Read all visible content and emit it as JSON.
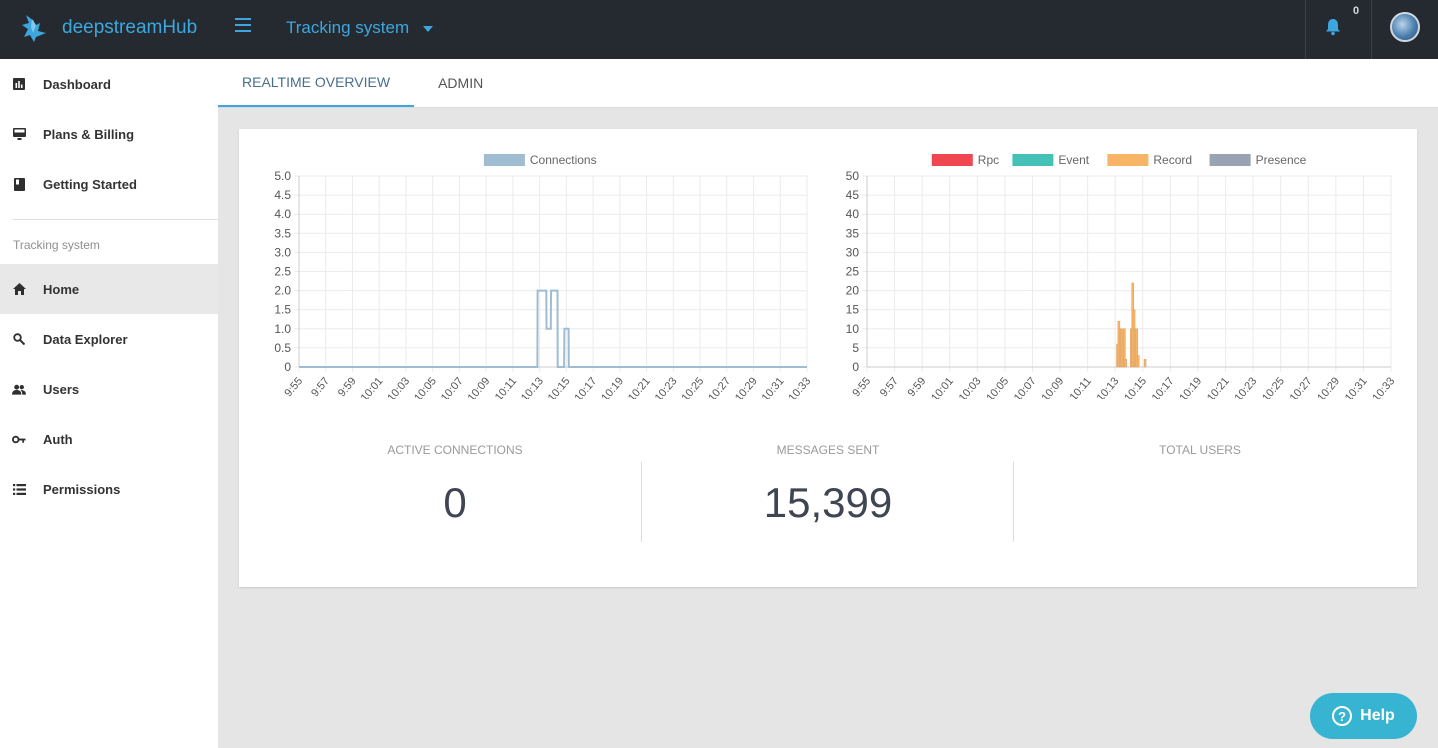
{
  "header": {
    "brand": "deepstreamHub",
    "app_name": "Tracking system",
    "notification_count": "0",
    "icons": [
      "deepstream-logo-icon",
      "menu-icon",
      "chevron-down-icon",
      "bell-icon",
      "avatar"
    ]
  },
  "sidebar": {
    "top_items": [
      {
        "label": "Dashboard",
        "icon": "bar-chart-icon"
      },
      {
        "label": "Plans & Billing",
        "icon": "monitor-icon"
      },
      {
        "label": "Getting Started",
        "icon": "book-icon"
      }
    ],
    "section_title": "Tracking system",
    "items": [
      {
        "label": "Home",
        "icon": "home-icon",
        "active": true
      },
      {
        "label": "Data Explorer",
        "icon": "search-icon"
      },
      {
        "label": "Users",
        "icon": "users-icon"
      },
      {
        "label": "Auth",
        "icon": "key-icon"
      },
      {
        "label": "Permissions",
        "icon": "list-icon"
      }
    ]
  },
  "tabs": [
    {
      "label": "REALTIME OVERVIEW",
      "active": true
    },
    {
      "label": "ADMIN",
      "active": false
    }
  ],
  "stats": [
    {
      "label": "ACTIVE CONNECTIONS",
      "value": "0"
    },
    {
      "label": "MESSAGES SENT",
      "value": "15,399"
    },
    {
      "label": "TOTAL USERS",
      "value": ""
    }
  ],
  "help": {
    "label": "Help"
  },
  "colors": {
    "accent": "#3ca7df",
    "topbar": "#252a31",
    "connections": "#9fbcd1",
    "rpc": "#f04650",
    "event": "#45c1b8",
    "record": "#f8b565",
    "presence": "#9aa3b4"
  },
  "chart_data": [
    {
      "type": "area",
      "title": "",
      "legend": [
        "Connections"
      ],
      "legend_position": "top",
      "grid": true,
      "ylim": [
        0,
        5
      ],
      "yticks": [
        "0",
        "0.5",
        "1.0",
        "1.5",
        "2.0",
        "2.5",
        "3.0",
        "3.5",
        "4.0",
        "4.5",
        "5.0"
      ],
      "xticks": [
        "9:55",
        "9:57",
        "9:59",
        "10:01",
        "10:03",
        "10:05",
        "10:07",
        "10:09",
        "10:11",
        "10:13",
        "10:15",
        "10:17",
        "10:19",
        "10:21",
        "10:23",
        "10:25",
        "10:27",
        "10:29",
        "10:31",
        "10:33"
      ],
      "x_range": [
        "9:55",
        "10:33"
      ],
      "series": [
        {
          "name": "Connections",
          "color": "#9fbcd1",
          "points": [
            [
              "9:55",
              0
            ],
            [
              "10:12:50",
              0
            ],
            [
              "10:12:51",
              2
            ],
            [
              "10:13:30",
              2
            ],
            [
              "10:13:31",
              1
            ],
            [
              "10:13:50",
              1
            ],
            [
              "10:13:51",
              2
            ],
            [
              "10:14:20",
              2
            ],
            [
              "10:14:21",
              0
            ],
            [
              "10:14:50",
              0
            ],
            [
              "10:14:51",
              1
            ],
            [
              "10:15:10",
              1
            ],
            [
              "10:15:11",
              0
            ],
            [
              "10:33",
              0
            ]
          ]
        }
      ]
    },
    {
      "type": "bar",
      "title": "",
      "legend": [
        "Rpc",
        "Event",
        "Record",
        "Presence"
      ],
      "legend_position": "top",
      "grid": true,
      "ylim": [
        0,
        50
      ],
      "yticks": [
        "0",
        "5",
        "10",
        "15",
        "20",
        "25",
        "30",
        "35",
        "40",
        "45",
        "50"
      ],
      "xticks": [
        "9:55",
        "9:57",
        "9:59",
        "10:01",
        "10:03",
        "10:05",
        "10:07",
        "10:09",
        "10:11",
        "10:13",
        "10:15",
        "10:17",
        "10:19",
        "10:21",
        "10:23",
        "10:25",
        "10:27",
        "10:29",
        "10:31",
        "10:33"
      ],
      "x_range": [
        "9:55",
        "10:33"
      ],
      "series": [
        {
          "name": "Rpc",
          "color": "#f04650",
          "points": []
        },
        {
          "name": "Event",
          "color": "#45c1b8",
          "points": []
        },
        {
          "name": "Record",
          "color": "#f8b565",
          "points": [
            [
              "10:13:10",
              6
            ],
            [
              "10:13:16",
              12
            ],
            [
              "10:13:22",
              10
            ],
            [
              "10:13:28",
              10
            ],
            [
              "10:13:34",
              10
            ],
            [
              "10:13:40",
              10
            ],
            [
              "10:13:46",
              2
            ],
            [
              "10:14:10",
              10
            ],
            [
              "10:14:16",
              22
            ],
            [
              "10:14:22",
              15
            ],
            [
              "10:14:28",
              10
            ],
            [
              "10:14:34",
              10
            ],
            [
              "10:14:40",
              3
            ],
            [
              "10:15:10",
              2
            ]
          ]
        },
        {
          "name": "Presence",
          "color": "#9aa3b4",
          "points": []
        }
      ]
    }
  ]
}
